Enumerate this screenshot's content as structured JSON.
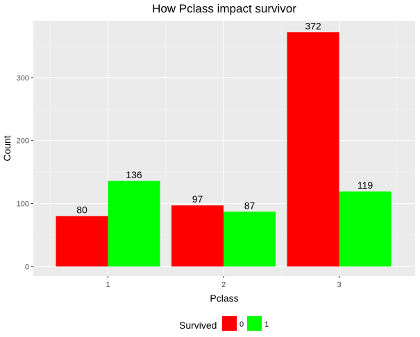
{
  "chart_data": {
    "type": "bar",
    "title": "How Pclass impact survivor",
    "xlabel": "Pclass",
    "ylabel": "Count",
    "categories": [
      "1",
      "2",
      "3"
    ],
    "yticks": [
      0,
      100,
      200,
      300
    ],
    "ylim": [
      -15,
      390
    ],
    "grid": true,
    "legend": {
      "title": "Survived",
      "placement": "bottom"
    },
    "series": [
      {
        "name": "0",
        "color": "#ff0000",
        "values": [
          80,
          97,
          372
        ]
      },
      {
        "name": "1",
        "color": "#00ff00",
        "values": [
          136,
          87,
          119
        ]
      }
    ]
  }
}
